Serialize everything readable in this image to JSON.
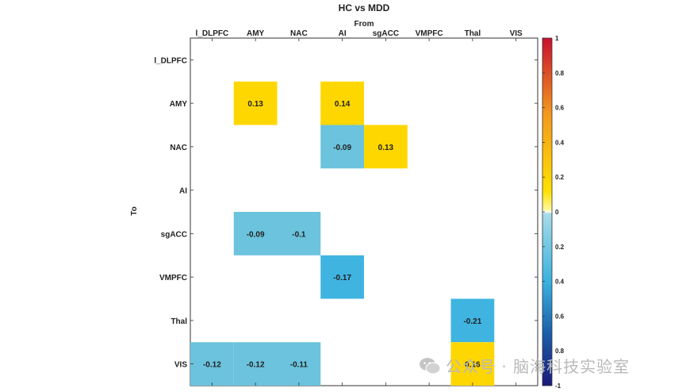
{
  "chart_data": {
    "type": "heatmap",
    "title": "HC vs MDD",
    "xlabel": "From",
    "ylabel": "To",
    "x_categories": [
      "l_DLPFC",
      "AMY",
      "NAC",
      "AI",
      "sgACC",
      "VMPFC",
      "Thal",
      "VIS"
    ],
    "y_categories": [
      "l_DLPFC",
      "AMY",
      "NAC",
      "AI",
      "sgACC",
      "VMPFC",
      "Thal",
      "VIS"
    ],
    "cells": [
      {
        "from": "AMY",
        "to": "AMY",
        "value": 0.13
      },
      {
        "from": "AI",
        "to": "AMY",
        "value": 0.14
      },
      {
        "from": "AI",
        "to": "NAC",
        "value": -0.09
      },
      {
        "from": "sgACC",
        "to": "NAC",
        "value": 0.13
      },
      {
        "from": "AMY",
        "to": "sgACC",
        "value": -0.09
      },
      {
        "from": "NAC",
        "to": "sgACC",
        "value": -0.1
      },
      {
        "from": "AI",
        "to": "VMPFC",
        "value": -0.17
      },
      {
        "from": "Thal",
        "to": "Thal",
        "value": -0.21
      },
      {
        "from": "l_DLPFC",
        "to": "VIS",
        "value": -0.12
      },
      {
        "from": "AMY",
        "to": "VIS",
        "value": -0.12
      },
      {
        "from": "NAC",
        "to": "VIS",
        "value": -0.11
      },
      {
        "from": "Thal",
        "to": "VIS",
        "value": 0.16
      }
    ],
    "colorbar": {
      "ticks": [
        "1",
        "0.8",
        "0.6",
        "0.4",
        "0.2",
        "0",
        "0.2",
        "0.4",
        "0.6",
        "0.8",
        "-1"
      ],
      "range": [
        -1,
        1
      ]
    },
    "grid": false
  },
  "watermark": {
    "text": "公众号 · 脑海科技实验室"
  }
}
